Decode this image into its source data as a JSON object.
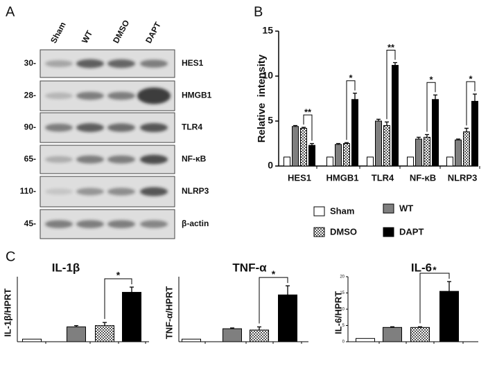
{
  "panel_labels": [
    "A",
    "B",
    "C"
  ],
  "blot": {
    "lanes": [
      "Sham",
      "WT",
      "DMSO",
      "DAPT"
    ],
    "rows": [
      {
        "label": "HES1",
        "marker": "30-"
      },
      {
        "label": "HMGB1",
        "marker": "28-"
      },
      {
        "label": "TLR4",
        "marker": "90-"
      },
      {
        "label": "NF-κB",
        "marker": "65-"
      },
      {
        "label": "NLRP3",
        "marker": "110-"
      },
      {
        "label": "β-actin",
        "marker": "45-"
      }
    ]
  },
  "chart_data": [
    {
      "type": "grouped-bar",
      "ylabel": "Relative  intensity",
      "categories": [
        "HES1",
        "HMGB1",
        "TLR4",
        "NF-κB",
        "NLRP3"
      ],
      "ylim": [
        0,
        15
      ],
      "yticks": [
        0,
        5,
        10,
        15
      ],
      "legend": "bottom",
      "series": [
        {
          "name": "Sham",
          "color": "#ffffff",
          "values": [
            1,
            1,
            1,
            1,
            1
          ],
          "errors": [
            0,
            0,
            0,
            0,
            0
          ]
        },
        {
          "name": "WT",
          "color": "#7f7f7f",
          "values": [
            4.4,
            2.4,
            5,
            3,
            2.9
          ],
          "errors": [
            0.1,
            0.1,
            0.2,
            0.2,
            0.1
          ]
        },
        {
          "name": "DMSO",
          "color": "#ffffff",
          "pattern": "checker",
          "values": [
            4.2,
            2.5,
            4.5,
            3.2,
            3.8
          ],
          "errors": [
            0.1,
            0.1,
            0.4,
            0.3,
            0.4
          ]
        },
        {
          "name": "DAPT",
          "color": "#000000",
          "values": [
            2.3,
            7.4,
            11.2,
            7.4,
            7.2
          ],
          "errors": [
            0.2,
            0.7,
            0.3,
            0.5,
            0.8
          ]
        }
      ],
      "annotations": [
        {
          "category": 0,
          "label": "**"
        },
        {
          "category": 1,
          "label": "*"
        },
        {
          "category": 2,
          "label": "**"
        },
        {
          "category": 3,
          "label": "*"
        },
        {
          "category": 4,
          "label": "*"
        }
      ]
    },
    {
      "type": "bar",
      "title": "IL-1β",
      "ylabel": "IL-1β/HPRT",
      "ylim": [
        0,
        25
      ],
      "values": [
        1,
        5.7,
        6.2,
        19
      ],
      "errors": [
        0,
        0.5,
        1.2,
        2
      ],
      "colors": [
        "#ffffff",
        "#7f7f7f",
        "#ffffff",
        "#000000"
      ],
      "patterns": [
        null,
        null,
        "checker",
        null
      ],
      "annotations": [
        {
          "from": 2,
          "to": 3,
          "label": "*"
        }
      ]
    },
    {
      "type": "bar",
      "title": "TNF-α",
      "ylabel": "TNF-α/HPRT",
      "ylim": [
        0,
        25
      ],
      "values": [
        1,
        5,
        4.5,
        18
      ],
      "errors": [
        0,
        0.3,
        1.2,
        3.5
      ],
      "colors": [
        "#ffffff",
        "#7f7f7f",
        "#ffffff",
        "#000000"
      ],
      "patterns": [
        null,
        null,
        "checker",
        null
      ],
      "annotations": [
        {
          "from": 2,
          "to": 3,
          "label": "*"
        }
      ]
    },
    {
      "type": "bar",
      "title": "IL-6",
      "ylabel": "IL-6/HPRT",
      "ylim": [
        0,
        20
      ],
      "yticks": [
        0,
        5,
        10,
        15,
        20
      ],
      "values": [
        1,
        4.4,
        4.4,
        15.5
      ],
      "errors": [
        0,
        0.2,
        0.2,
        3
      ],
      "colors": [
        "#ffffff",
        "#7f7f7f",
        "#ffffff",
        "#000000"
      ],
      "patterns": [
        null,
        null,
        "checker",
        null
      ],
      "annotations": [
        {
          "from": 2,
          "to": 3,
          "label": "*"
        }
      ]
    }
  ]
}
